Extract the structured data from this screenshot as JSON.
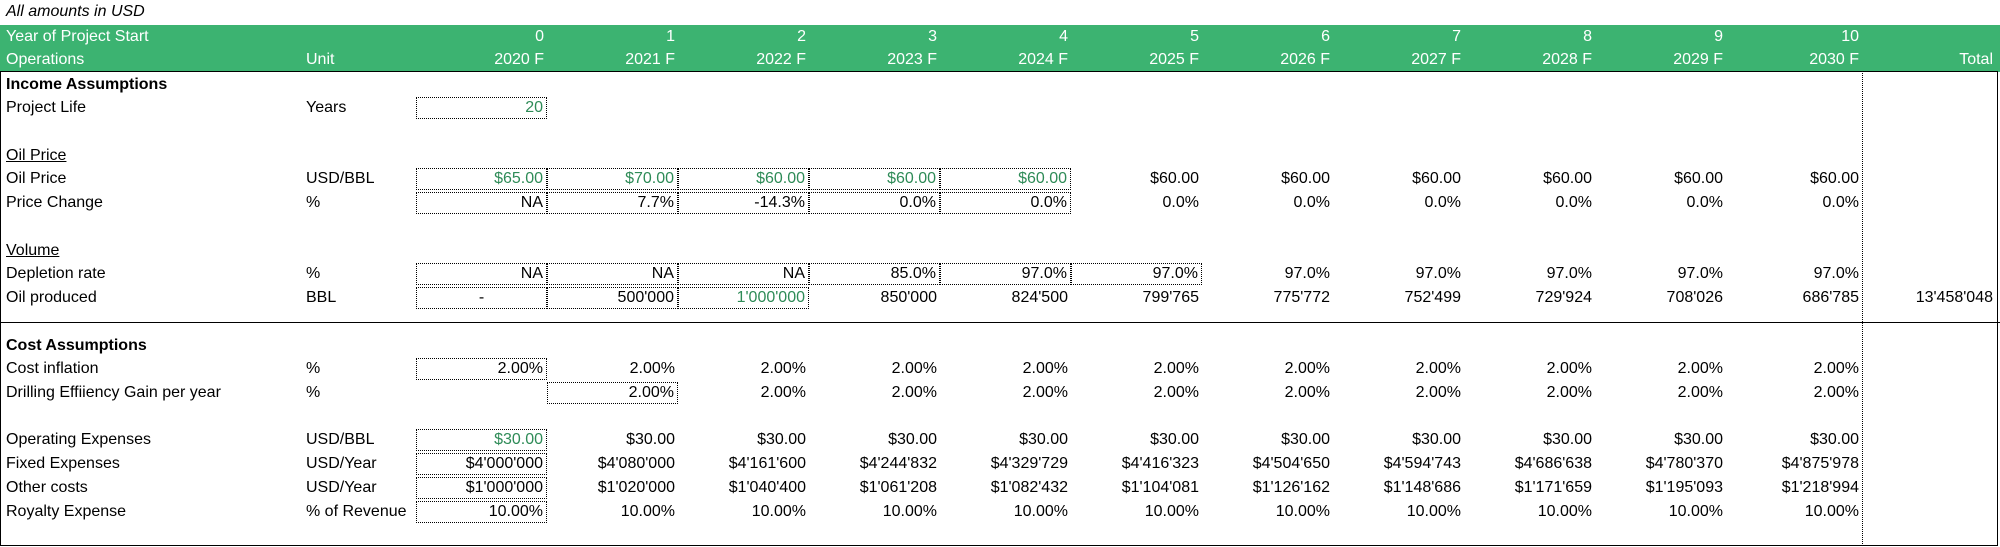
{
  "note": "All amounts in USD",
  "header": {
    "row1_label": "Year of Project Start",
    "row2_label": "Operations",
    "row2_unit": "Unit",
    "year_index": [
      "0",
      "1",
      "2",
      "3",
      "4",
      "5",
      "6",
      "7",
      "8",
      "9",
      "10"
    ],
    "years": [
      "2020 F",
      "2021 F",
      "2022 F",
      "2023 F",
      "2024 F",
      "2025 F",
      "2026 F",
      "2027 F",
      "2028 F",
      "2029 F",
      "2030 F"
    ],
    "total": "Total"
  },
  "income_assumptions": {
    "title": "Income Assumptions",
    "project_life": {
      "label": "Project Life",
      "unit": "Years",
      "value": "20"
    },
    "oil_price_section": "Oil Price",
    "oil_price": {
      "label": "Oil Price",
      "unit": "USD/BBL",
      "values": [
        "$65.00",
        "$70.00",
        "$60.00",
        "$60.00",
        "$60.00",
        "$60.00",
        "$60.00",
        "$60.00",
        "$60.00",
        "$60.00",
        "$60.00"
      ]
    },
    "price_change": {
      "label": "Price Change",
      "unit": "%",
      "values": [
        "NA",
        "7.7%",
        "-14.3%",
        "0.0%",
        "0.0%",
        "0.0%",
        "0.0%",
        "0.0%",
        "0.0%",
        "0.0%",
        "0.0%"
      ]
    },
    "volume_section": "Volume",
    "depletion_rate": {
      "label": "Depletion rate",
      "unit": "%",
      "values": [
        "NA",
        "NA",
        "NA",
        "85.0%",
        "97.0%",
        "97.0%",
        "97.0%",
        "97.0%",
        "97.0%",
        "97.0%",
        "97.0%"
      ]
    },
    "oil_produced": {
      "label": "Oil produced",
      "unit": "BBL",
      "values": [
        "-",
        "500'000",
        "1'000'000",
        "850'000",
        "824'500",
        "799'765",
        "775'772",
        "752'499",
        "729'924",
        "708'026",
        "686'785"
      ],
      "total": "13'458'048"
    }
  },
  "cost_assumptions": {
    "title": "Cost Assumptions",
    "cost_inflation": {
      "label": "Cost inflation",
      "unit": "%",
      "values": [
        "2.00%",
        "2.00%",
        "2.00%",
        "2.00%",
        "2.00%",
        "2.00%",
        "2.00%",
        "2.00%",
        "2.00%",
        "2.00%",
        "2.00%"
      ]
    },
    "drilling_gain": {
      "label": "Drilling Effiiency Gain per year",
      "unit": "%",
      "values": [
        "",
        "2.00%",
        "2.00%",
        "2.00%",
        "2.00%",
        "2.00%",
        "2.00%",
        "2.00%",
        "2.00%",
        "2.00%",
        "2.00%"
      ]
    },
    "operating_expenses": {
      "label": "Operating Expenses",
      "unit": "USD/BBL",
      "values": [
        "$30.00",
        "$30.00",
        "$30.00",
        "$30.00",
        "$30.00",
        "$30.00",
        "$30.00",
        "$30.00",
        "$30.00",
        "$30.00",
        "$30.00"
      ]
    },
    "fixed_expenses": {
      "label": "Fixed Expenses",
      "unit": "USD/Year",
      "values": [
        "$4'000'000",
        "$4'080'000",
        "$4'161'600",
        "$4'244'832",
        "$4'329'729",
        "$4'416'323",
        "$4'504'650",
        "$4'594'743",
        "$4'686'638",
        "$4'780'370",
        "$4'875'978"
      ]
    },
    "other_costs": {
      "label": "Other costs",
      "unit": "USD/Year",
      "values": [
        "$1'000'000",
        "$1'020'000",
        "$1'040'400",
        "$1'061'208",
        "$1'082'432",
        "$1'104'081",
        "$1'126'162",
        "$1'148'686",
        "$1'171'659",
        "$1'195'093",
        "$1'218'994"
      ]
    },
    "royalty_expense": {
      "label": "Royalty Expense",
      "unit": "% of Revenue",
      "values": [
        "10.00%",
        "10.00%",
        "10.00%",
        "10.00%",
        "10.00%",
        "10.00%",
        "10.00%",
        "10.00%",
        "10.00%",
        "10.00%",
        "10.00%"
      ]
    }
  }
}
